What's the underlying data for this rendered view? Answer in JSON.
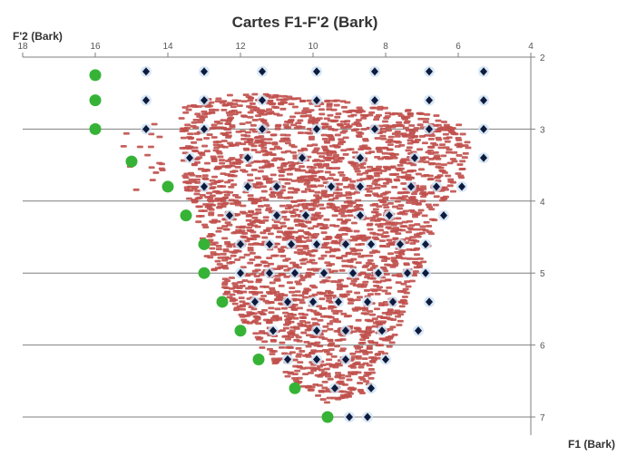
{
  "chart_data": {
    "type": "scatter",
    "title": "Cartes F1-F'2 (Bark)",
    "xlabel": "F1 (Bark)",
    "ylabel": "F'2 (Bark)",
    "xlim": [
      18,
      4
    ],
    "ylim": [
      2,
      7.5
    ],
    "x_ticks": [
      "18",
      "16",
      "14",
      "12",
      "10",
      "8",
      "6",
      "4"
    ],
    "y_ticks": [
      "2",
      "3",
      "4",
      "5",
      "6",
      "7"
    ],
    "grid": "horizontal",
    "x_axis_position": "top",
    "y_axis_position": "right",
    "colors": {
      "data_points": "#c0504d",
      "grid_points": "#0d1b3e",
      "boundary_points": "#36b336",
      "gridline": "#7f7f7f"
    },
    "series": [
      {
        "name": "",
        "marker": "dash",
        "color": "#c0504d",
        "region": {
          "description": "",
          "polygon": [
            [
              13.6,
              2.7
            ],
            [
              12.8,
              2.55
            ],
            [
              11.6,
              2.5
            ],
            [
              10.5,
              2.55
            ],
            [
              9.4,
              2.6
            ],
            [
              8.2,
              2.65
            ],
            [
              7.0,
              2.75
            ],
            [
              6.0,
              2.9
            ],
            [
              5.7,
              3.2
            ],
            [
              5.9,
              3.7
            ],
            [
              6.6,
              4.2
            ],
            [
              6.9,
              4.8
            ],
            [
              7.4,
              5.3
            ],
            [
              7.7,
              5.9
            ],
            [
              8.2,
              6.3
            ],
            [
              8.6,
              6.7
            ],
            [
              9.6,
              6.8
            ],
            [
              10.4,
              6.6
            ],
            [
              11.0,
              6.3
            ],
            [
              11.8,
              5.8
            ],
            [
              12.4,
              5.3
            ],
            [
              12.9,
              4.8
            ],
            [
              13.2,
              4.4
            ],
            [
              13.5,
              3.9
            ],
            [
              13.7,
              3.3
            ]
          ],
          "extra_polygon": [
            [
              15.4,
              3.1
            ],
            [
              14.3,
              2.9
            ],
            [
              14.0,
              3.5
            ],
            [
              14.6,
              4.2
            ],
            [
              15.1,
              3.6
            ]
          ]
        }
      },
      {
        "name": "",
        "marker": "diamond",
        "color": "#0d1b3e",
        "points": [
          [
            14.6,
            2.2
          ],
          [
            13.0,
            2.2
          ],
          [
            11.4,
            2.2
          ],
          [
            9.9,
            2.2
          ],
          [
            8.3,
            2.2
          ],
          [
            6.8,
            2.2
          ],
          [
            5.3,
            2.2
          ],
          [
            14.6,
            2.6
          ],
          [
            13.0,
            2.6
          ],
          [
            11.4,
            2.6
          ],
          [
            9.9,
            2.6
          ],
          [
            8.3,
            2.6
          ],
          [
            6.8,
            2.6
          ],
          [
            5.3,
            2.6
          ],
          [
            14.6,
            3.0
          ],
          [
            13.0,
            3.0
          ],
          [
            11.4,
            3.0
          ],
          [
            9.9,
            3.0
          ],
          [
            8.3,
            3.0
          ],
          [
            6.8,
            3.0
          ],
          [
            5.3,
            3.0
          ],
          [
            13.4,
            3.4
          ],
          [
            11.8,
            3.4
          ],
          [
            10.3,
            3.4
          ],
          [
            8.7,
            3.4
          ],
          [
            7.2,
            3.4
          ],
          [
            5.3,
            3.4
          ],
          [
            13.0,
            3.8
          ],
          [
            11.8,
            3.8
          ],
          [
            11.0,
            3.8
          ],
          [
            9.5,
            3.8
          ],
          [
            8.7,
            3.8
          ],
          [
            7.3,
            3.8
          ],
          [
            6.6,
            3.8
          ],
          [
            5.9,
            3.8
          ],
          [
            12.3,
            4.2
          ],
          [
            11.0,
            4.2
          ],
          [
            10.2,
            4.2
          ],
          [
            8.7,
            4.2
          ],
          [
            7.9,
            4.2
          ],
          [
            6.4,
            4.2
          ],
          [
            12.0,
            4.6
          ],
          [
            11.2,
            4.6
          ],
          [
            10.6,
            4.6
          ],
          [
            9.9,
            4.6
          ],
          [
            9.1,
            4.6
          ],
          [
            8.4,
            4.6
          ],
          [
            7.6,
            4.6
          ],
          [
            6.9,
            4.6
          ],
          [
            12.0,
            5.0
          ],
          [
            11.2,
            5.0
          ],
          [
            10.5,
            5.0
          ],
          [
            9.7,
            5.0
          ],
          [
            8.9,
            5.0
          ],
          [
            8.2,
            5.0
          ],
          [
            7.4,
            5.0
          ],
          [
            6.9,
            5.0
          ],
          [
            11.6,
            5.4
          ],
          [
            10.7,
            5.4
          ],
          [
            10.0,
            5.4
          ],
          [
            9.3,
            5.4
          ],
          [
            8.5,
            5.4
          ],
          [
            7.8,
            5.4
          ],
          [
            6.8,
            5.4
          ],
          [
            11.1,
            5.8
          ],
          [
            9.9,
            5.8
          ],
          [
            9.1,
            5.8
          ],
          [
            8.1,
            5.8
          ],
          [
            7.1,
            5.8
          ],
          [
            10.7,
            6.2
          ],
          [
            9.9,
            6.2
          ],
          [
            9.1,
            6.2
          ],
          [
            8.0,
            6.2
          ],
          [
            9.4,
            6.6
          ],
          [
            8.4,
            6.6
          ],
          [
            9.0,
            7.0
          ],
          [
            8.5,
            7.0
          ]
        ]
      },
      {
        "name": "",
        "marker": "circle",
        "color": "#36b336",
        "points": [
          [
            16.0,
            2.25
          ],
          [
            16.0,
            2.6
          ],
          [
            16.0,
            3.0
          ],
          [
            15.0,
            3.45
          ],
          [
            14.0,
            3.8
          ],
          [
            13.5,
            4.2
          ],
          [
            13.0,
            4.6
          ],
          [
            13.0,
            5.0
          ],
          [
            12.5,
            5.4
          ],
          [
            12.0,
            5.8
          ],
          [
            11.5,
            6.2
          ],
          [
            10.5,
            6.6
          ],
          [
            9.6,
            7.0
          ]
        ]
      }
    ]
  }
}
